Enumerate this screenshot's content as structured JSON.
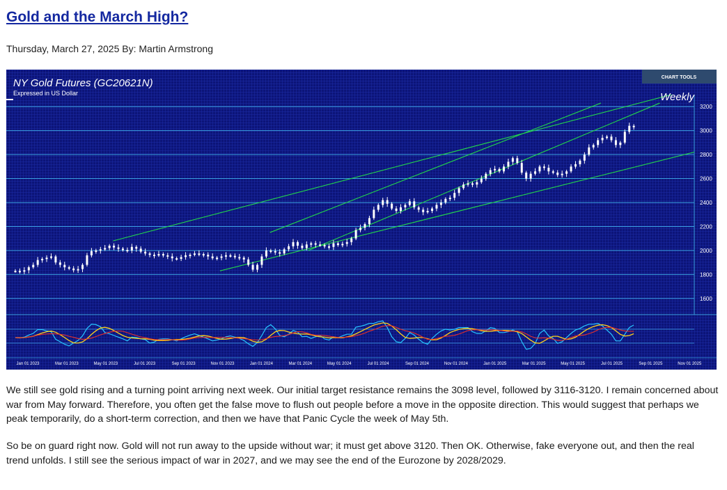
{
  "article": {
    "title": "Gold and the March High?",
    "meta": "Thursday, March 27, 2025 By: Martin Armstrong",
    "paragraphs": [
      "We still see gold rising and a turning point arriving next week. Our initial target resistance remains the 3098 level, followed by 3116-3120. I remain concerned about war from May forward. Therefore, you often get the false move to flush out people before a move in the opposite direction. This would suggest that perhaps we peak temporarily, do a short-term correction, and then we have that Panic Cycle the week of May 5th.",
      "So be on guard right now. Gold will not run away to the upside without war; it must get above 3120. Then OK. Otherwise, fake everyone out, and then the real trend unfolds. I still see the serious impact of war in 2027, and we may see the end of the Eurozone by 2028/2029."
    ]
  },
  "chart_data": {
    "type": "candlestick",
    "title": "NY Gold Futures (GC20621N)",
    "subtitle": "Expressed in US Dollar",
    "timeframe": "Weekly",
    "tools_label": "CHART TOOLS",
    "ylim": [
      1500,
      3300
    ],
    "y_ticks": [
      1600,
      1800,
      2000,
      2200,
      2400,
      2600,
      2800,
      3000,
      3200
    ],
    "y_tick_labels": [
      "1600",
      "1800",
      "2000",
      "2200",
      "2400",
      "2600",
      "2800",
      "3000",
      "3200"
    ],
    "x_labels": [
      "Jan 01 2023",
      "Mar 01 2023",
      "May 01 2023",
      "Jul 01 2023",
      "Sep 01 2023",
      "Nov 01 2023",
      "Jan 01 2024",
      "Mar 01 2024",
      "May 01 2024",
      "Jul 01 2024",
      "Sep 01 2024",
      "Nov 01 2024",
      "Jan 01 2025",
      "Mar 01 2025",
      "May 01 2025",
      "Jul 01 2025",
      "Sep 01 2025",
      "Nov 01 2025"
    ],
    "weekly_closes": [
      1830,
      1825,
      1835,
      1860,
      1880,
      1920,
      1930,
      1940,
      1950,
      1900,
      1880,
      1860,
      1850,
      1835,
      1845,
      1880,
      1960,
      1995,
      2000,
      2010,
      2020,
      2040,
      2025,
      2015,
      2005,
      2000,
      2030,
      2015,
      1990,
      1975,
      1965,
      1960,
      1970,
      1960,
      1950,
      1935,
      1930,
      1945,
      1960,
      1965,
      1975,
      1970,
      1965,
      1950,
      1935,
      1940,
      1950,
      1960,
      1955,
      1945,
      1940,
      1925,
      1880,
      1840,
      1880,
      1950,
      2000,
      1995,
      1985,
      1975,
      2010,
      2035,
      2070,
      2040,
      2020,
      2050,
      2060,
      2050,
      2045,
      2035,
      2030,
      2060,
      2045,
      2055,
      2070,
      2100,
      2170,
      2190,
      2220,
      2270,
      2340,
      2380,
      2420,
      2390,
      2350,
      2330,
      2360,
      2380,
      2410,
      2360,
      2340,
      2320,
      2330,
      2350,
      2380,
      2400,
      2430,
      2440,
      2480,
      2520,
      2550,
      2560,
      2550,
      2570,
      2600,
      2640,
      2670,
      2680,
      2660,
      2700,
      2740,
      2770,
      2730,
      2650,
      2600,
      2640,
      2660,
      2700,
      2690,
      2660,
      2650,
      2630,
      2640,
      2660,
      2700,
      2720,
      2750,
      2800,
      2860,
      2880,
      2920,
      2940,
      2950,
      2920,
      2880,
      2900,
      2990,
      3040,
      3030
    ],
    "overlay_lines": [
      {
        "from": [
          "2023-05-01",
          2080
        ],
        "to": [
          "2025-11-01",
          3360
        ]
      },
      {
        "from": [
          "2023-10-15",
          1830
        ],
        "to": [
          "2025-11-01",
          2830
        ]
      },
      {
        "from": [
          "2024-01-01",
          2150
        ],
        "to": [
          "2025-06-01",
          3230
        ]
      },
      {
        "from": [
          "2024-03-01",
          2000
        ],
        "to": [
          "2025-09-01",
          3230
        ]
      }
    ]
  }
}
